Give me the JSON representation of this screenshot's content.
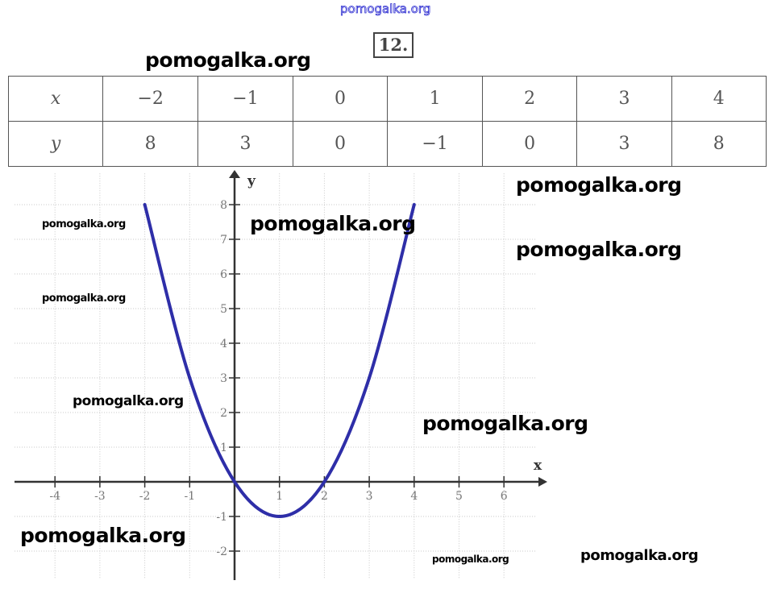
{
  "header": {
    "watermark_top": "pomogalka.org",
    "problem_number": "12."
  },
  "table": {
    "x_label": "x",
    "y_label": "y",
    "x_values": [
      "−2",
      "−1",
      "0",
      "1",
      "2",
      "3",
      "4"
    ],
    "y_values": [
      "8",
      "3",
      "0",
      "−1",
      "0",
      "3",
      "8"
    ]
  },
  "chart_data": {
    "type": "line",
    "title": "",
    "xlabel": "x",
    "ylabel": "y",
    "x": [
      -2,
      -1,
      0,
      1,
      2,
      3,
      4
    ],
    "y": [
      8,
      3,
      0,
      -1,
      0,
      3,
      8
    ],
    "xlim": [
      -4.9,
      6.9
    ],
    "ylim": [
      -2.8,
      8.9
    ],
    "x_ticks": [
      "-4",
      "-3",
      "-2",
      "-1",
      "1",
      "2",
      "3",
      "4",
      "5",
      "6"
    ],
    "y_ticks": [
      "8",
      "7",
      "6",
      "5",
      "4",
      "3",
      "2",
      "1",
      "-1",
      "-2"
    ],
    "grid": true,
    "line_color": "#2e2ea8"
  },
  "watermarks": [
    "pomogalka.org",
    "pomogalka.org",
    "pomogalka.org",
    "pomogalka.org",
    "pomogalka.org",
    "pomogalka.org",
    "pomogalka.org",
    "pomogalka.org",
    "pomogalka.org",
    "pomogalka.org",
    "pomogalka.org"
  ]
}
